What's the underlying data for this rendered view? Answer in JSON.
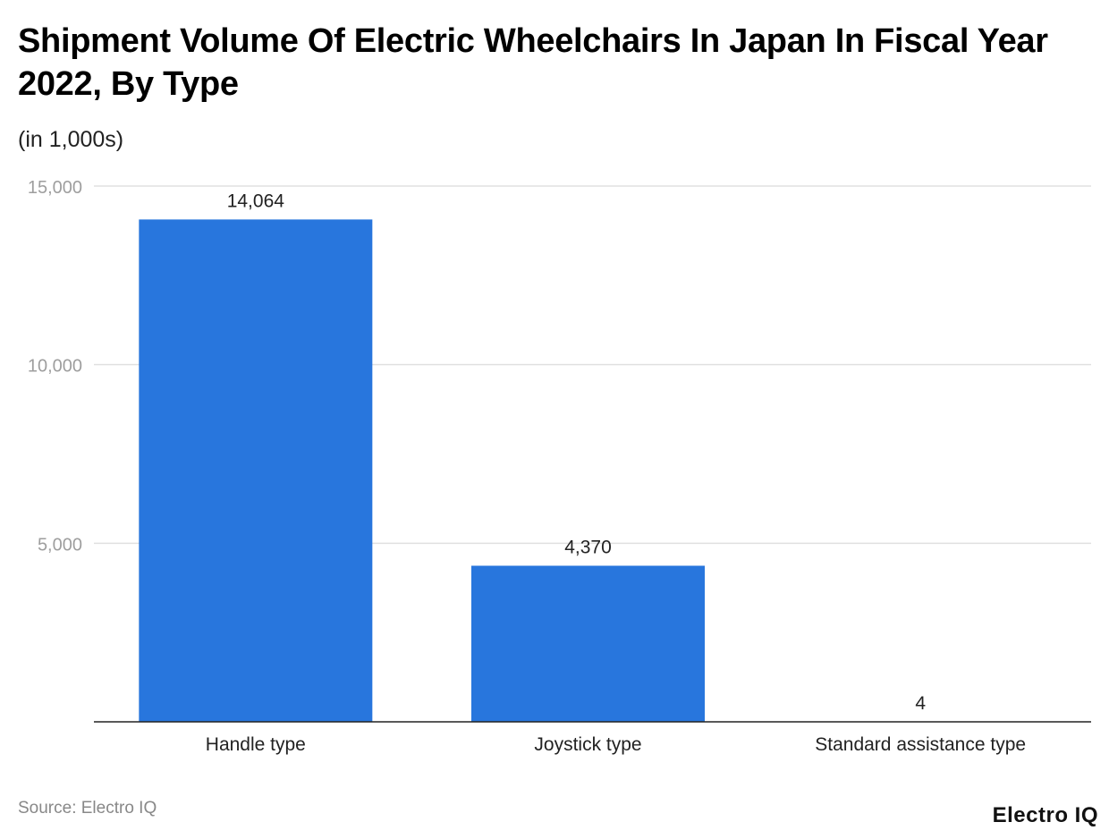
{
  "title": "Shipment Volume Of Electric Wheelchairs In Japan In Fiscal Year 2022, By Type",
  "subtitle": "(in 1,000s)",
  "source": "Source: Electro IQ",
  "logo": "Electro IQ",
  "colors": {
    "bar": "#2876dd",
    "grid": "#e0e0e0",
    "axis": "#222222",
    "tick_label": "#9e9e9e"
  },
  "chart_data": {
    "type": "bar",
    "title": "Shipment Volume Of Electric Wheelchairs In Japan In Fiscal Year 2022, By Type",
    "subtitle": "(in 1,000s)",
    "categories": [
      "Handle type",
      "Joystick type",
      "Standard assistance type"
    ],
    "values": [
      14064,
      4370,
      4
    ],
    "value_labels": [
      "14,064",
      "4,370",
      "4"
    ],
    "ylim": [
      0,
      15000
    ],
    "yticks": [
      5000,
      10000,
      15000
    ],
    "ytick_labels": [
      "5,000",
      "10,000",
      "15,000"
    ],
    "grid": true,
    "legend": "none"
  }
}
